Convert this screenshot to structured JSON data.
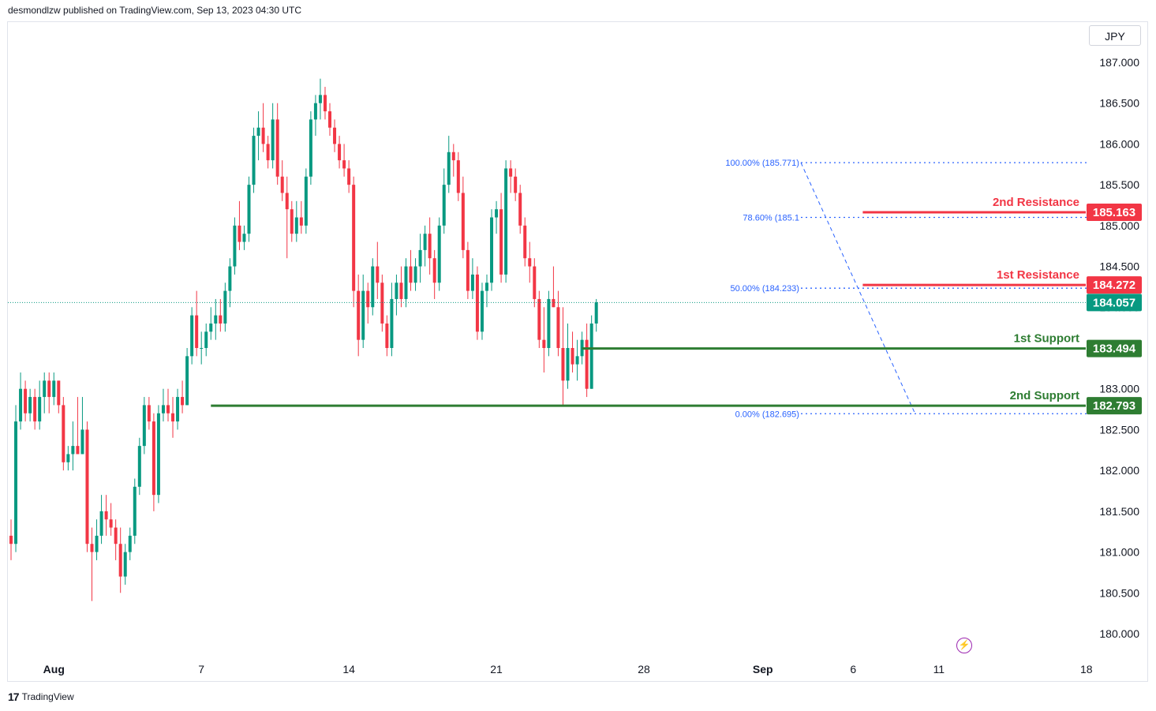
{
  "header": {
    "publisher_text": "desmondlzw published on TradingView.com, Sep 13, 2023 04:30 UTC"
  },
  "currency_label": "JPY",
  "footer": {
    "brand": "TradingView",
    "logo_icon": "tradingview-logo-icon"
  },
  "colors": {
    "up": "#089981",
    "down": "#f23645",
    "resistance": "#f23645",
    "support": "#2e7d32",
    "fib": "#2962ff",
    "current": "#089981"
  },
  "chart_data": {
    "type": "candlestick",
    "symbol_currency": "JPY",
    "y_ticks": [
      "187.000",
      "186.500",
      "186.000",
      "185.500",
      "185.000",
      "184.500",
      "184.000",
      "183.500",
      "183.000",
      "182.500",
      "182.000",
      "181.500",
      "181.000",
      "180.500",
      "180.000"
    ],
    "y_tick_values": [
      187.0,
      186.5,
      186.0,
      185.5,
      185.0,
      184.5,
      184.0,
      183.5,
      183.0,
      182.5,
      182.0,
      181.5,
      181.0,
      180.5,
      180.0
    ],
    "ylim": [
      179.7,
      187.5
    ],
    "x_ticks": [
      {
        "label": "Aug",
        "bar": 9,
        "bold": true
      },
      {
        "label": "7",
        "bar": 40,
        "bold": false
      },
      {
        "label": "14",
        "bar": 71,
        "bold": false
      },
      {
        "label": "21",
        "bar": 102,
        "bold": false
      },
      {
        "label": "28",
        "bar": 133,
        "bold": false
      },
      {
        "label": "Sep",
        "bar": 158,
        "bold": true
      },
      {
        "label": "6",
        "bar": 177,
        "bold": false
      },
      {
        "label": "11",
        "bar": 195,
        "bold": false
      },
      {
        "label": "18",
        "bar": 226,
        "bold": false
      }
    ],
    "levels": [
      {
        "name": "2nd Resistance",
        "value": 185.163,
        "label": "185.163",
        "kind": "resistance",
        "start_bar": 179
      },
      {
        "name": "1st Resistance",
        "value": 184.272,
        "label": "184.272",
        "kind": "resistance",
        "start_bar": 179
      },
      {
        "name": "1st Support",
        "value": 183.494,
        "label": "183.494",
        "kind": "support",
        "start_bar": 120
      },
      {
        "name": "2nd Support",
        "value": 182.793,
        "label": "182.793",
        "kind": "support",
        "start_bar": 42
      }
    ],
    "current_price": {
      "value": 184.057,
      "label": "184.057"
    },
    "fibonacci": [
      {
        "label": "100.00% (185.771)",
        "value": 185.771
      },
      {
        "label": "78.60% (185.1",
        "value": 185.1
      },
      {
        "label": "50.00% (184.233)",
        "value": 184.233
      },
      {
        "label": "0.00% (182.695)",
        "value": 182.695
      }
    ],
    "candles": [
      [
        181.2,
        181.4,
        180.9,
        181.1
      ],
      [
        181.1,
        182.8,
        181.0,
        182.6
      ],
      [
        182.6,
        183.2,
        182.5,
        183.0
      ],
      [
        183.0,
        183.1,
        182.6,
        182.7
      ],
      [
        182.7,
        183.0,
        182.6,
        182.9
      ],
      [
        182.9,
        183.0,
        182.5,
        182.6
      ],
      [
        182.6,
        183.1,
        182.5,
        182.9
      ],
      [
        182.9,
        183.2,
        182.7,
        183.1
      ],
      [
        183.1,
        183.2,
        182.7,
        182.9
      ],
      [
        182.9,
        183.2,
        182.8,
        183.1
      ],
      [
        183.1,
        183.1,
        182.7,
        182.8
      ],
      [
        182.8,
        182.9,
        182.0,
        182.1
      ],
      [
        182.1,
        182.3,
        182.0,
        182.2
      ],
      [
        182.2,
        182.6,
        182.0,
        182.3
      ],
      [
        182.3,
        182.9,
        182.2,
        182.2
      ],
      [
        182.2,
        182.9,
        182.2,
        182.5
      ],
      [
        182.5,
        182.6,
        181.0,
        181.1
      ],
      [
        181.1,
        181.3,
        180.4,
        181.0
      ],
      [
        181.0,
        181.4,
        180.9,
        181.2
      ],
      [
        181.2,
        181.7,
        181.1,
        181.5
      ],
      [
        181.5,
        181.7,
        181.2,
        181.4
      ],
      [
        181.4,
        181.6,
        181.2,
        181.3
      ],
      [
        181.3,
        181.4,
        180.9,
        181.1
      ],
      [
        181.1,
        181.3,
        180.5,
        180.7
      ],
      [
        180.7,
        181.1,
        180.6,
        181.0
      ],
      [
        181.0,
        181.3,
        180.9,
        181.2
      ],
      [
        181.2,
        181.9,
        181.1,
        181.8
      ],
      [
        181.8,
        182.4,
        181.7,
        182.3
      ],
      [
        182.3,
        182.9,
        182.2,
        182.8
      ],
      [
        182.8,
        182.9,
        182.5,
        182.6
      ],
      [
        182.6,
        182.7,
        181.5,
        181.7
      ],
      [
        181.7,
        182.8,
        181.6,
        182.7
      ],
      [
        182.7,
        183.0,
        182.6,
        182.8
      ],
      [
        182.8,
        183.0,
        182.6,
        182.7
      ],
      [
        182.7,
        182.9,
        182.4,
        182.6
      ],
      [
        182.6,
        183.0,
        182.5,
        182.9
      ],
      [
        182.9,
        183.1,
        182.7,
        182.8
      ],
      [
        182.8,
        183.5,
        182.8,
        183.4
      ],
      [
        183.4,
        184.0,
        183.3,
        183.9
      ],
      [
        183.9,
        184.2,
        183.4,
        183.5
      ],
      [
        183.5,
        183.7,
        183.3,
        183.5
      ],
      [
        183.5,
        183.8,
        183.4,
        183.7
      ],
      [
        183.7,
        184.0,
        183.6,
        183.8
      ],
      [
        183.8,
        184.1,
        183.6,
        183.9
      ],
      [
        183.9,
        184.1,
        183.7,
        183.8
      ],
      [
        183.8,
        184.3,
        183.7,
        184.2
      ],
      [
        184.2,
        184.6,
        184.0,
        184.5
      ],
      [
        184.5,
        185.1,
        184.4,
        185.0
      ],
      [
        185.0,
        185.3,
        184.7,
        184.8
      ],
      [
        184.8,
        185.0,
        184.7,
        184.9
      ],
      [
        184.9,
        185.6,
        184.8,
        185.5
      ],
      [
        185.5,
        186.2,
        185.4,
        186.1
      ],
      [
        186.1,
        186.4,
        185.8,
        186.2
      ],
      [
        186.2,
        186.5,
        185.9,
        186.0
      ],
      [
        186.0,
        186.1,
        185.7,
        185.8
      ],
      [
        185.8,
        186.5,
        185.7,
        186.3
      ],
      [
        186.3,
        186.5,
        185.5,
        185.6
      ],
      [
        185.6,
        185.8,
        185.3,
        185.4
      ],
      [
        185.4,
        185.6,
        184.6,
        185.2
      ],
      [
        185.2,
        185.3,
        184.8,
        184.9
      ],
      [
        184.9,
        185.3,
        184.8,
        185.1
      ],
      [
        185.1,
        185.3,
        184.9,
        185.0
      ],
      [
        185.0,
        185.7,
        184.9,
        185.6
      ],
      [
        185.6,
        186.4,
        185.5,
        186.3
      ],
      [
        186.3,
        186.6,
        186.1,
        186.5
      ],
      [
        186.5,
        186.8,
        186.3,
        186.6
      ],
      [
        186.6,
        186.7,
        186.3,
        186.4
      ],
      [
        186.4,
        186.5,
        186.1,
        186.2
      ],
      [
        186.2,
        186.3,
        185.9,
        186.0
      ],
      [
        186.0,
        186.1,
        185.7,
        185.8
      ],
      [
        185.8,
        186.0,
        185.6,
        185.7
      ],
      [
        185.7,
        185.8,
        185.4,
        185.5
      ],
      [
        185.5,
        185.6,
        184.0,
        184.2
      ],
      [
        184.2,
        184.4,
        183.4,
        183.6
      ],
      [
        183.6,
        184.4,
        183.5,
        184.2
      ],
      [
        184.2,
        184.3,
        183.8,
        184.0
      ],
      [
        184.0,
        184.6,
        183.9,
        184.5
      ],
      [
        184.5,
        184.8,
        184.1,
        184.3
      ],
      [
        184.3,
        184.4,
        183.7,
        183.8
      ],
      [
        183.8,
        183.9,
        183.4,
        183.5
      ],
      [
        183.5,
        184.3,
        183.4,
        184.1
      ],
      [
        184.1,
        184.4,
        183.9,
        184.3
      ],
      [
        184.3,
        184.5,
        184.0,
        184.1
      ],
      [
        184.1,
        184.6,
        184.0,
        184.5
      ],
      [
        184.5,
        184.7,
        184.2,
        184.3
      ],
      [
        184.3,
        184.6,
        184.2,
        184.5
      ],
      [
        184.5,
        184.9,
        184.3,
        184.7
      ],
      [
        184.7,
        185.0,
        184.5,
        184.9
      ],
      [
        184.9,
        185.1,
        184.4,
        184.6
      ],
      [
        184.6,
        184.7,
        184.1,
        184.3
      ],
      [
        184.3,
        185.1,
        184.2,
        185.0
      ],
      [
        185.0,
        185.7,
        184.9,
        185.5
      ],
      [
        185.5,
        186.1,
        185.4,
        185.9
      ],
      [
        185.9,
        186.0,
        185.6,
        185.8
      ],
      [
        185.8,
        185.9,
        185.3,
        185.4
      ],
      [
        185.4,
        185.6,
        184.6,
        184.7
      ],
      [
        184.7,
        184.8,
        184.1,
        184.2
      ],
      [
        184.2,
        184.6,
        184.1,
        184.4
      ],
      [
        184.4,
        184.5,
        183.6,
        183.7
      ],
      [
        183.7,
        184.3,
        183.6,
        184.2
      ],
      [
        184.2,
        184.4,
        184.0,
        184.3
      ],
      [
        184.3,
        185.2,
        184.2,
        185.1
      ],
      [
        185.1,
        185.3,
        184.9,
        185.2
      ],
      [
        185.2,
        185.4,
        184.3,
        184.4
      ],
      [
        184.4,
        185.8,
        184.3,
        185.7
      ],
      [
        185.7,
        185.8,
        185.4,
        185.6
      ],
      [
        185.6,
        185.7,
        185.3,
        185.4
      ],
      [
        185.4,
        185.5,
        184.9,
        185.0
      ],
      [
        185.0,
        185.1,
        184.5,
        184.6
      ],
      [
        184.6,
        184.8,
        184.3,
        184.5
      ],
      [
        184.5,
        184.6,
        184.0,
        184.1
      ],
      [
        184.1,
        184.2,
        183.5,
        183.6
      ],
      [
        183.6,
        184.0,
        183.2,
        183.5
      ],
      [
        183.5,
        184.2,
        183.4,
        184.1
      ],
      [
        184.1,
        184.5,
        184.0,
        184.0
      ],
      [
        184.0,
        184.2,
        183.4,
        183.5
      ],
      [
        183.5,
        184.0,
        182.8,
        183.1
      ],
      [
        183.1,
        183.8,
        183.0,
        183.5
      ],
      [
        183.5,
        183.7,
        183.2,
        183.3
      ],
      [
        183.3,
        183.6,
        183.1,
        183.4
      ],
      [
        183.4,
        183.7,
        183.3,
        183.6
      ],
      [
        183.6,
        183.8,
        182.9,
        183.0
      ],
      [
        183.0,
        183.9,
        183.0,
        183.8
      ],
      [
        183.8,
        184.1,
        183.7,
        184.06
      ]
    ]
  }
}
